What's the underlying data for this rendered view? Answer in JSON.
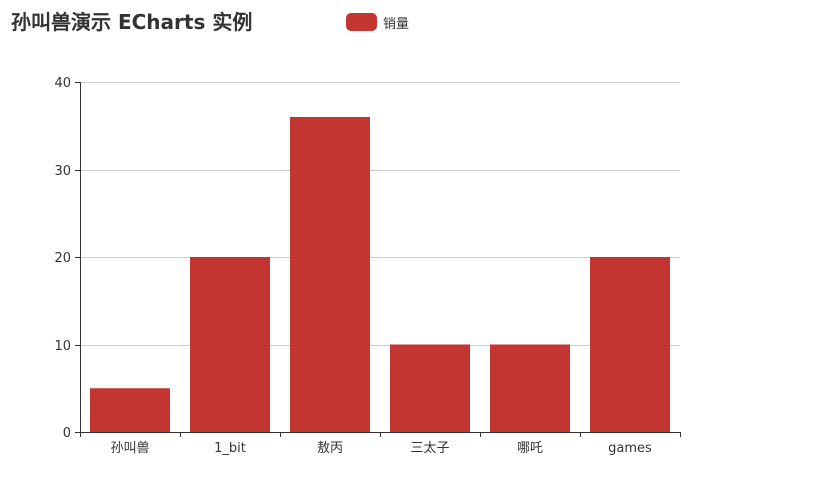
{
  "chart_data": {
    "type": "bar",
    "title": "孙叫兽演示 ECharts 实例",
    "categories": [
      "孙叫兽",
      "1_bit",
      "敖丙",
      "三太子",
      "哪吒",
      "games"
    ],
    "series": [
      {
        "name": "销量",
        "values": [
          5,
          20,
          36,
          10,
          10,
          20
        ]
      }
    ],
    "xlabel": "",
    "ylabel": "",
    "ylim": [
      0,
      40
    ],
    "yticks": [
      0,
      10,
      20,
      30,
      40
    ],
    "grid": "horizontal",
    "legend_position": "top-center",
    "colors": {
      "bar": "#c23531",
      "axis": "#333333",
      "gridline": "#cccccc"
    }
  }
}
